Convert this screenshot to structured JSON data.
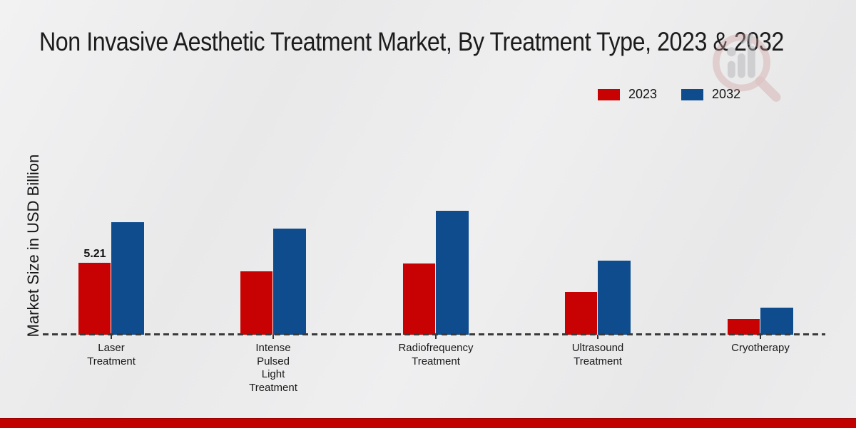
{
  "watermark": {
    "name": "magnifier-bar-chart-logo",
    "ring_color": "#cf9d9d",
    "bars_color": "#b5b5ba"
  },
  "footer": {
    "accent_color": "#c10000"
  },
  "chart_data": {
    "type": "bar",
    "title": "Non Invasive Aesthetic Treatment Market, By Treatment Type, 2023 & 2032",
    "ylabel": "Market Size in USD Billion",
    "unit": "USD Billion",
    "categories": [
      "Laser Treatment",
      "Intense Pulsed Light Treatment",
      "Radiofrequency Treatment",
      "Ultrasound Treatment",
      "Cryotherapy"
    ],
    "series": [
      {
        "name": "2023",
        "color": "#c80202",
        "values": [
          5.21,
          4.59,
          5.15,
          3.09,
          1.13
        ]
      },
      {
        "name": "2032",
        "color": "#0e4c8e",
        "values": [
          8.15,
          7.68,
          8.97,
          5.36,
          1.96
        ]
      }
    ],
    "data_labels": [
      {
        "series": "2023",
        "category": "Laser Treatment",
        "text": "5.21"
      }
    ],
    "ylim": [
      0,
      10
    ],
    "grid": false,
    "y_axis_ticks_visible": false,
    "baseline_style": "dashed",
    "legend_position": "top-right",
    "legend": [
      "2023",
      "2032"
    ]
  }
}
